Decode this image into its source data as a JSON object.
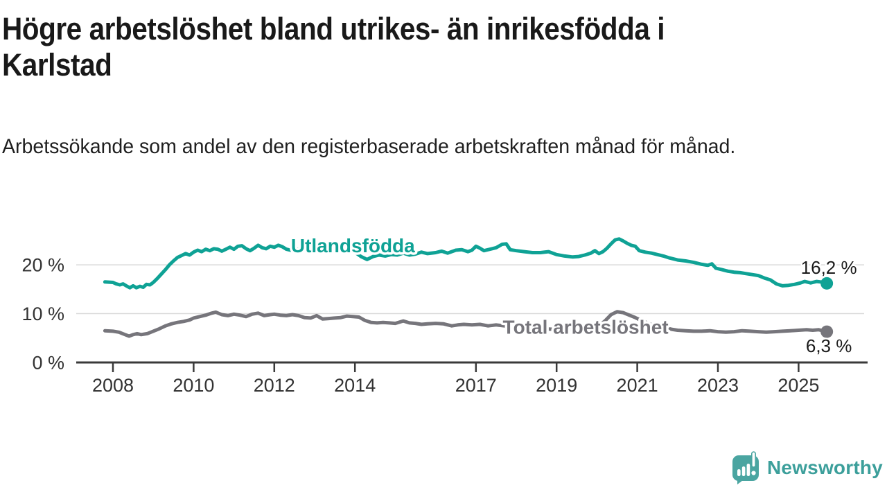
{
  "header": {
    "title": "Högre arbetslöshet bland utrikes- än inrikesfödda i Karlstad",
    "subtitle": "Arbetssökande som andel av den registerbaserade arbetskraften månad för månad."
  },
  "branding": {
    "logo_text": "Newsworthy",
    "logo_icon": "newsworthy-speech-bubble-chart-icon",
    "brand_color": "#3C9F9B",
    "icon_color": "#4AA5A1"
  },
  "chart_data": {
    "type": "line",
    "unit": "%",
    "x_axis": {
      "tick_labels": [
        "2008",
        "2010",
        "2012",
        "2014",
        "2017",
        "2019",
        "2021",
        "2023",
        "2025"
      ],
      "tick_values": [
        2008,
        2010,
        2012,
        2014,
        2017,
        2019,
        2021,
        2023,
        2025
      ],
      "range": [
        2007.1,
        2026.7
      ]
    },
    "y_axis": {
      "tick_labels": [
        "0 %",
        "10 %",
        "20 %"
      ],
      "tick_values": [
        0,
        10,
        20
      ],
      "gridline_values": [
        10,
        20
      ],
      "range": [
        0,
        26.5
      ],
      "grid": true
    },
    "legend_position": "inline-labels",
    "styles": {
      "grid_color": "#D9D9D9",
      "axis_color": "#3A3A3A",
      "tick_label_color": "#333333",
      "value_label_color": "#1A1A1A"
    },
    "series": [
      {
        "name": "Utlandsfödda",
        "color": "#0FA295",
        "line_width": 5,
        "inline_label": {
          "text": "Utlandsfödda",
          "x": 2013.95,
          "y": 22.6
        },
        "end_dot": true,
        "end_value": 16.2,
        "end_label": "16,2 %",
        "end_label_position": "above",
        "points": [
          [
            2007.8,
            16.5
          ],
          [
            2008.0,
            16.4
          ],
          [
            2008.08,
            16.1
          ],
          [
            2008.17,
            15.9
          ],
          [
            2008.25,
            16.1
          ],
          [
            2008.33,
            15.7
          ],
          [
            2008.42,
            15.3
          ],
          [
            2008.5,
            15.7
          ],
          [
            2008.58,
            15.3
          ],
          [
            2008.67,
            15.6
          ],
          [
            2008.75,
            15.4
          ],
          [
            2008.83,
            16.0
          ],
          [
            2008.92,
            15.9
          ],
          [
            2009.0,
            16.4
          ],
          [
            2009.1,
            17.2
          ],
          [
            2009.2,
            18.1
          ],
          [
            2009.3,
            19.0
          ],
          [
            2009.4,
            20.0
          ],
          [
            2009.5,
            20.8
          ],
          [
            2009.6,
            21.5
          ],
          [
            2009.7,
            21.9
          ],
          [
            2009.8,
            22.3
          ],
          [
            2009.9,
            22.0
          ],
          [
            2010.0,
            22.6
          ],
          [
            2010.1,
            23.0
          ],
          [
            2010.2,
            22.7
          ],
          [
            2010.3,
            23.2
          ],
          [
            2010.4,
            22.9
          ],
          [
            2010.5,
            23.3
          ],
          [
            2010.6,
            23.2
          ],
          [
            2010.7,
            22.8
          ],
          [
            2010.8,
            23.2
          ],
          [
            2010.9,
            23.6
          ],
          [
            2011.0,
            23.2
          ],
          [
            2011.1,
            23.8
          ],
          [
            2011.2,
            23.9
          ],
          [
            2011.3,
            23.3
          ],
          [
            2011.4,
            22.9
          ],
          [
            2011.5,
            23.4
          ],
          [
            2011.6,
            24.0
          ],
          [
            2011.7,
            23.5
          ],
          [
            2011.8,
            23.3
          ],
          [
            2011.9,
            23.8
          ],
          [
            2012.0,
            23.6
          ],
          [
            2012.1,
            24.0
          ],
          [
            2012.2,
            23.7
          ],
          [
            2012.3,
            23.2
          ],
          [
            2012.4,
            23.0
          ],
          [
            2012.5,
            23.4
          ],
          [
            2012.6,
            23.1
          ],
          [
            2012.7,
            22.9
          ],
          [
            2012.8,
            23.2
          ],
          [
            2012.9,
            23.0
          ],
          [
            2013.0,
            23.3
          ],
          [
            2013.1,
            23.6
          ],
          [
            2013.2,
            23.2
          ],
          [
            2013.3,
            22.9
          ],
          [
            2013.45,
            23.4
          ],
          [
            2013.6,
            23.1
          ],
          [
            2013.75,
            23.6
          ],
          [
            2013.9,
            23.3
          ],
          [
            2014.0,
            22.6
          ],
          [
            2014.15,
            21.7
          ],
          [
            2014.3,
            21.1
          ],
          [
            2014.45,
            21.7
          ],
          [
            2014.6,
            22.0
          ],
          [
            2014.75,
            21.8
          ],
          [
            2014.9,
            22.1
          ],
          [
            2015.05,
            22.0
          ],
          [
            2015.2,
            22.4
          ],
          [
            2015.35,
            22.0
          ],
          [
            2015.5,
            22.2
          ],
          [
            2015.65,
            22.6
          ],
          [
            2015.8,
            22.3
          ],
          [
            2016.0,
            22.5
          ],
          [
            2016.15,
            22.8
          ],
          [
            2016.3,
            22.4
          ],
          [
            2016.5,
            23.0
          ],
          [
            2016.65,
            23.1
          ],
          [
            2016.8,
            22.7
          ],
          [
            2016.9,
            23.0
          ],
          [
            2017.0,
            23.8
          ],
          [
            2017.1,
            23.4
          ],
          [
            2017.2,
            22.9
          ],
          [
            2017.35,
            23.2
          ],
          [
            2017.5,
            23.5
          ],
          [
            2017.65,
            24.2
          ],
          [
            2017.75,
            24.3
          ],
          [
            2017.85,
            23.1
          ],
          [
            2018.0,
            22.9
          ],
          [
            2018.2,
            22.7
          ],
          [
            2018.4,
            22.5
          ],
          [
            2018.6,
            22.5
          ],
          [
            2018.8,
            22.7
          ],
          [
            2019.0,
            22.1
          ],
          [
            2019.2,
            21.8
          ],
          [
            2019.4,
            21.6
          ],
          [
            2019.55,
            21.7
          ],
          [
            2019.7,
            22.0
          ],
          [
            2019.85,
            22.4
          ],
          [
            2019.95,
            22.9
          ],
          [
            2020.05,
            22.3
          ],
          [
            2020.15,
            22.7
          ],
          [
            2020.25,
            23.4
          ],
          [
            2020.35,
            24.3
          ],
          [
            2020.45,
            25.1
          ],
          [
            2020.55,
            25.3
          ],
          [
            2020.65,
            24.9
          ],
          [
            2020.75,
            24.4
          ],
          [
            2020.85,
            24.0
          ],
          [
            2020.95,
            23.8
          ],
          [
            2021.05,
            22.9
          ],
          [
            2021.2,
            22.6
          ],
          [
            2021.35,
            22.4
          ],
          [
            2021.5,
            22.1
          ],
          [
            2021.65,
            21.8
          ],
          [
            2021.8,
            21.4
          ],
          [
            2022.0,
            21.0
          ],
          [
            2022.2,
            20.8
          ],
          [
            2022.4,
            20.5
          ],
          [
            2022.6,
            20.1
          ],
          [
            2022.75,
            19.9
          ],
          [
            2022.85,
            20.2
          ],
          [
            2022.95,
            19.3
          ],
          [
            2023.1,
            19.0
          ],
          [
            2023.25,
            18.7
          ],
          [
            2023.4,
            18.5
          ],
          [
            2023.55,
            18.4
          ],
          [
            2023.7,
            18.2
          ],
          [
            2023.85,
            18.0
          ],
          [
            2024.0,
            17.8
          ],
          [
            2024.15,
            17.3
          ],
          [
            2024.3,
            16.9
          ],
          [
            2024.45,
            16.1
          ],
          [
            2024.6,
            15.7
          ],
          [
            2024.75,
            15.8
          ],
          [
            2024.9,
            16.0
          ],
          [
            2025.05,
            16.3
          ],
          [
            2025.15,
            16.6
          ],
          [
            2025.3,
            16.3
          ],
          [
            2025.45,
            16.6
          ],
          [
            2025.55,
            16.5
          ],
          [
            2025.7,
            16.2
          ]
        ]
      },
      {
        "name": "Total arbetslöshet",
        "color": "#76757B",
        "line_width": 5,
        "inline_label": {
          "text": "Total arbetslöshet",
          "x": 2019.72,
          "y": 5.9
        },
        "end_dot": true,
        "end_value": 6.3,
        "end_label": "6,3 %",
        "end_label_position": "below",
        "points": [
          [
            2007.8,
            6.5
          ],
          [
            2008.0,
            6.4
          ],
          [
            2008.15,
            6.2
          ],
          [
            2008.3,
            5.7
          ],
          [
            2008.4,
            5.4
          ],
          [
            2008.5,
            5.7
          ],
          [
            2008.6,
            5.9
          ],
          [
            2008.7,
            5.7
          ],
          [
            2008.85,
            5.9
          ],
          [
            2009.0,
            6.4
          ],
          [
            2009.15,
            6.9
          ],
          [
            2009.3,
            7.5
          ],
          [
            2009.45,
            7.9
          ],
          [
            2009.6,
            8.2
          ],
          [
            2009.75,
            8.4
          ],
          [
            2009.9,
            8.7
          ],
          [
            2010.0,
            9.1
          ],
          [
            2010.15,
            9.4
          ],
          [
            2010.3,
            9.7
          ],
          [
            2010.45,
            10.1
          ],
          [
            2010.55,
            10.3
          ],
          [
            2010.7,
            9.8
          ],
          [
            2010.85,
            9.6
          ],
          [
            2011.0,
            9.9
          ],
          [
            2011.15,
            9.7
          ],
          [
            2011.3,
            9.4
          ],
          [
            2011.45,
            9.9
          ],
          [
            2011.6,
            10.1
          ],
          [
            2011.75,
            9.6
          ],
          [
            2011.9,
            9.8
          ],
          [
            2012.0,
            9.9
          ],
          [
            2012.15,
            9.7
          ],
          [
            2012.3,
            9.6
          ],
          [
            2012.45,
            9.8
          ],
          [
            2012.6,
            9.6
          ],
          [
            2012.75,
            9.2
          ],
          [
            2012.9,
            9.1
          ],
          [
            2013.05,
            9.6
          ],
          [
            2013.2,
            8.9
          ],
          [
            2013.35,
            9.0
          ],
          [
            2013.5,
            9.1
          ],
          [
            2013.65,
            9.2
          ],
          [
            2013.8,
            9.5
          ],
          [
            2013.95,
            9.4
          ],
          [
            2014.1,
            9.3
          ],
          [
            2014.25,
            8.6
          ],
          [
            2014.4,
            8.2
          ],
          [
            2014.55,
            8.1
          ],
          [
            2014.7,
            8.2
          ],
          [
            2014.85,
            8.1
          ],
          [
            2015.0,
            8.0
          ],
          [
            2015.2,
            8.5
          ],
          [
            2015.35,
            8.1
          ],
          [
            2015.5,
            8.0
          ],
          [
            2015.65,
            7.8
          ],
          [
            2015.8,
            7.9
          ],
          [
            2016.0,
            8.0
          ],
          [
            2016.2,
            7.9
          ],
          [
            2016.4,
            7.5
          ],
          [
            2016.55,
            7.7
          ],
          [
            2016.7,
            7.8
          ],
          [
            2016.9,
            7.7
          ],
          [
            2017.1,
            7.8
          ],
          [
            2017.3,
            7.5
          ],
          [
            2017.5,
            7.7
          ],
          [
            2017.7,
            7.5
          ],
          [
            2017.9,
            7.3
          ],
          [
            2018.1,
            7.1
          ],
          [
            2018.3,
            6.9
          ],
          [
            2018.5,
            7.0
          ],
          [
            2018.7,
            6.9
          ],
          [
            2018.9,
            6.8
          ],
          [
            2019.1,
            6.9
          ],
          [
            2019.3,
            6.7
          ],
          [
            2019.5,
            6.8
          ],
          [
            2019.7,
            7.0
          ],
          [
            2019.9,
            7.2
          ],
          [
            2020.05,
            7.5
          ],
          [
            2020.2,
            8.5
          ],
          [
            2020.35,
            9.8
          ],
          [
            2020.5,
            10.4
          ],
          [
            2020.65,
            10.2
          ],
          [
            2020.8,
            9.7
          ],
          [
            2020.95,
            9.2
          ],
          [
            2021.1,
            8.6
          ],
          [
            2021.25,
            8.1
          ],
          [
            2021.4,
            7.6
          ],
          [
            2021.55,
            7.2
          ],
          [
            2021.7,
            7.1
          ],
          [
            2021.85,
            6.8
          ],
          [
            2022.0,
            6.6
          ],
          [
            2022.2,
            6.5
          ],
          [
            2022.4,
            6.4
          ],
          [
            2022.6,
            6.4
          ],
          [
            2022.8,
            6.5
          ],
          [
            2023.0,
            6.3
          ],
          [
            2023.2,
            6.2
          ],
          [
            2023.4,
            6.3
          ],
          [
            2023.6,
            6.5
          ],
          [
            2023.8,
            6.4
          ],
          [
            2024.0,
            6.3
          ],
          [
            2024.2,
            6.2
          ],
          [
            2024.4,
            6.3
          ],
          [
            2024.6,
            6.4
          ],
          [
            2024.8,
            6.5
          ],
          [
            2025.0,
            6.6
          ],
          [
            2025.2,
            6.7
          ],
          [
            2025.35,
            6.6
          ],
          [
            2025.5,
            6.7
          ],
          [
            2025.7,
            6.3
          ]
        ]
      }
    ]
  }
}
